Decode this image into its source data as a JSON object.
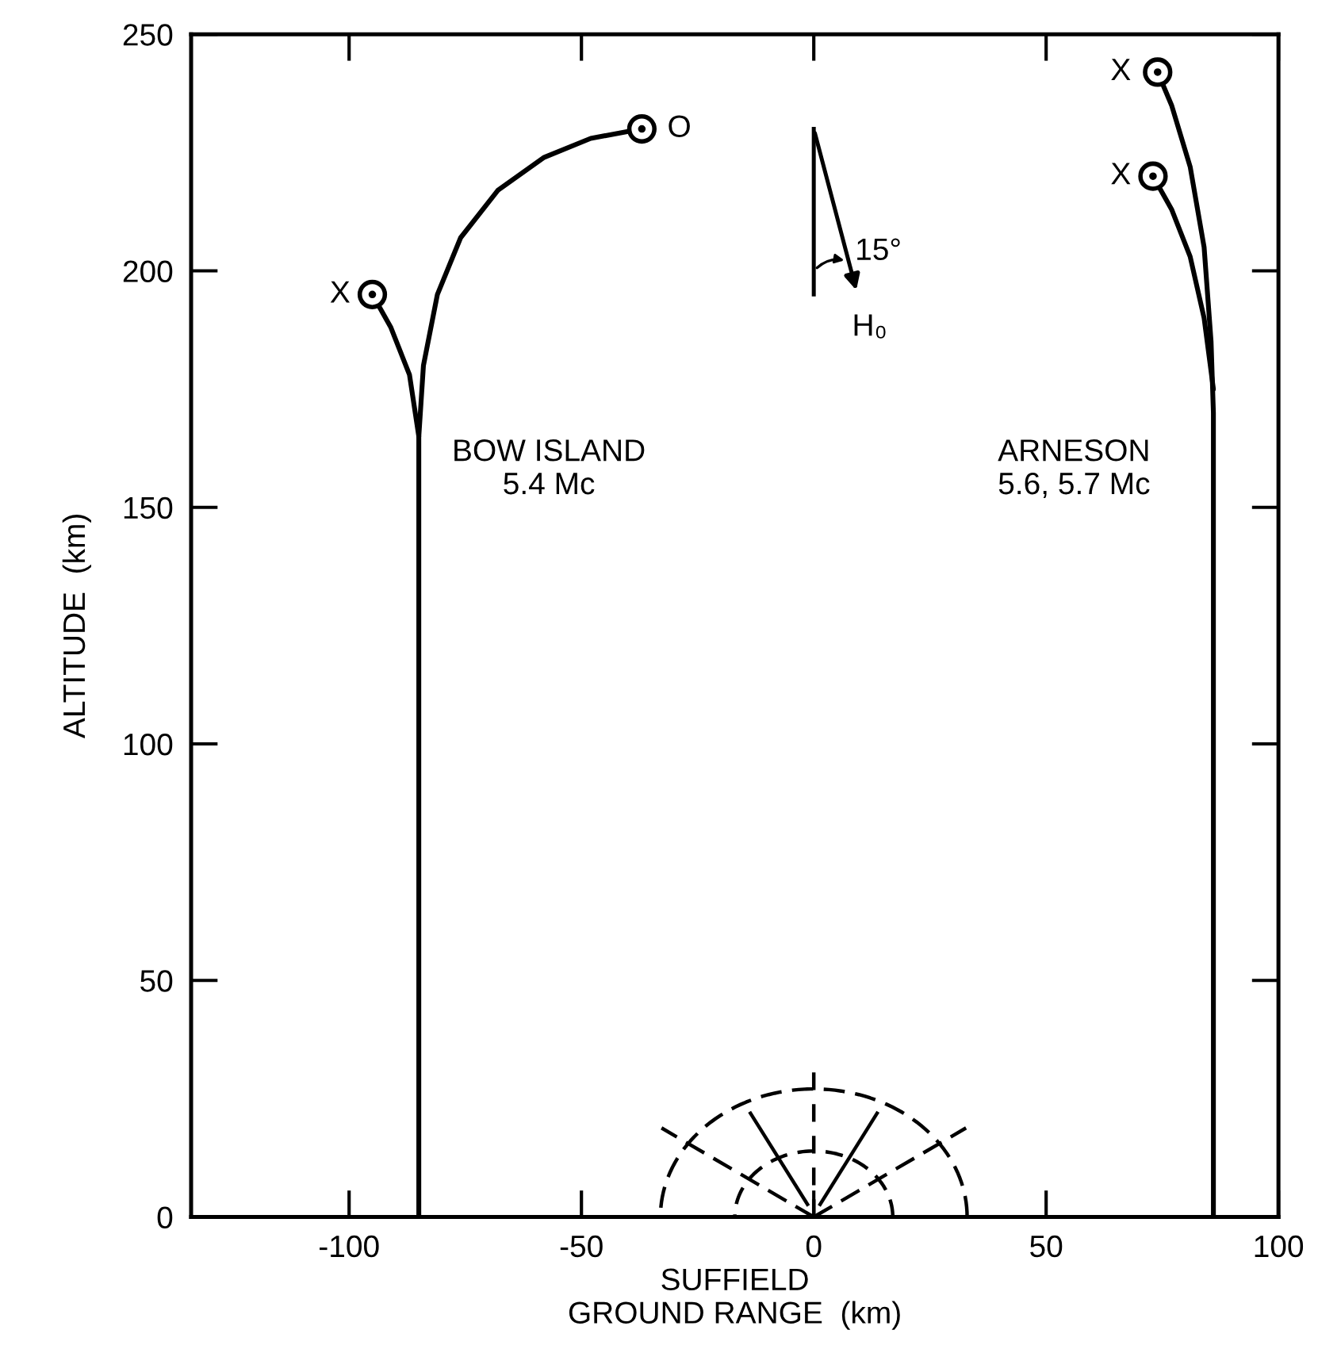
{
  "chart_data": {
    "type": "line",
    "xlabel": "SUFFIELD\nGROUND RANGE  (km)",
    "ylabel": "ALTITUDE  (km)",
    "xlim": [
      -134,
      100
    ],
    "ylim": [
      0,
      250
    ],
    "xticks": [
      -100,
      -50,
      0,
      50,
      100
    ],
    "yticks": [
      0,
      50,
      100,
      150,
      200,
      250
    ],
    "grid": false,
    "series": [
      {
        "color": "#000000",
        "x": [
          -85,
          -85,
          -85,
          -84,
          -81,
          -76,
          -68,
          -58,
          -48,
          -37
        ],
        "values": [
          0,
          150,
          165,
          180,
          195,
          207,
          217,
          224,
          228,
          230
        ]
      },
      {
        "color": "#000000",
        "x": [
          -85,
          -87,
          -91,
          -95
        ],
        "values": [
          165,
          178,
          188,
          195
        ]
      },
      {
        "color": "#000000",
        "x": [
          86,
          86,
          85.5,
          84,
          81,
          77,
          74
        ],
        "values": [
          0,
          170,
          185,
          205,
          222,
          235,
          242
        ]
      },
      {
        "color": "#000000",
        "x": [
          86,
          84,
          81,
          77,
          73
        ],
        "values": [
          175,
          190,
          203,
          213,
          220
        ]
      },
      {
        "type": "scatter",
        "marker": "circle",
        "color": "#000000",
        "x": [
          -37,
          -95,
          74,
          73
        ],
        "values": [
          230,
          195,
          242,
          220
        ]
      }
    ],
    "annotations": [
      "BOW ISLAND\n5.4 Mc",
      "ARNESON\n5.6, 5.7 Mc",
      "O",
      "X",
      "X",
      "X",
      "15°",
      "H₀"
    ]
  }
}
